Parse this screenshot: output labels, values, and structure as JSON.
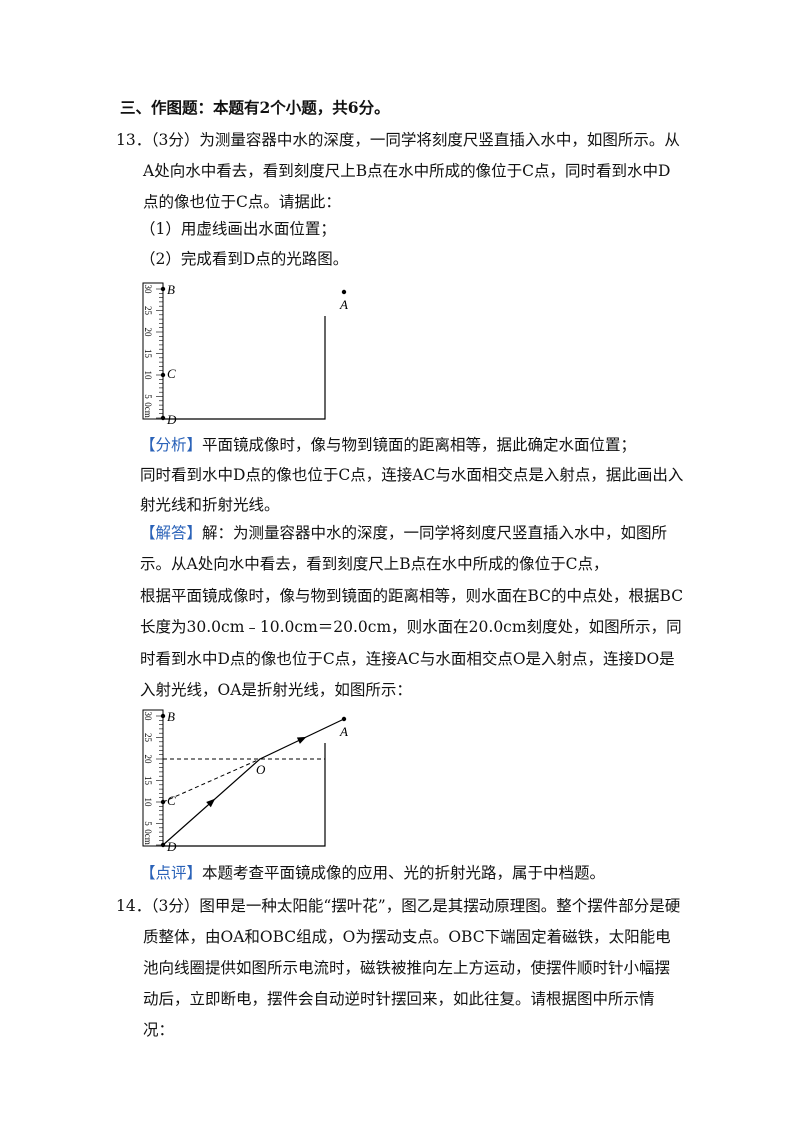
{
  "section": {
    "title": "三、作图题：本题有2个小题，共6分。"
  },
  "questions": [
    {
      "number": "13．",
      "stem": "（3分）为测量容器中水的深度，一同学将刻度尺竖直插入水中，如图所示。从A处向水中看去，看到刻度尺上B点在水中所成的像位于C点，同时看到水中D点的像也位于C点。请据此：",
      "items": [
        "（1）用虚线画出水面位置；",
        "（2）完成看到D点的光路图。"
      ],
      "figure": {
        "ruler_labels": [
          "30",
          "25",
          "20",
          "15",
          "10",
          "5",
          "0cm"
        ],
        "points": [
          "B",
          "C",
          "D",
          "A"
        ]
      },
      "analysis": {
        "tag": "【分析】",
        "paragraphs": [
          "平面镜成像时，像与物到镜面的距离相等，据此确定水面位置；",
          "同时看到水中D点的像也位于C点，连接AC与水面相交点是入射点，据此画出入射光线和折射光线。"
        ]
      },
      "answer": {
        "tag": "【解答】",
        "paragraphs": [
          "解：为测量容器中水的深度，一同学将刻度尺竖直插入水中，如图所示。从A处向水中看去，看到刻度尺上B点在水中所成的像位于C点，",
          "根据平面镜成像时，像与物到镜面的距离相等，则水面在BC的中点处，根据BC长度为30.0cm﹣10.0cm＝20.0cm，则水面在20.0cm刻度处，如图所示，同时看到水中D点的像也位于C点，连接AC与水面相交点O是入射点，连接DO是入射光线，OA是折射光线，如图所示："
        ],
        "figure": {
          "ruler_labels": [
            "30",
            "25",
            "20",
            "15",
            "10",
            "5",
            "0cm"
          ],
          "points": [
            "B",
            "C",
            "D",
            "A",
            "O"
          ]
        }
      },
      "comment": {
        "tag": "【点评】",
        "text": "本题考查平面镜成像的应用、光的折射光路，属于中档题。"
      }
    },
    {
      "number": "14．",
      "stem": "（3分）图甲是一种太阳能“摆叶花”，图乙是其摆动原理图。整个摆件部分是硬质整体，由OA和OBC组成，O为摆动支点。OBC下端固定着磁铁，太阳能电池向线圈提供如图所示电流时，磁铁被推向左上方运动，使摆件顺时针小幅摆动后，立即断电，摆件会自动逆时针摆回来，如此往复。请根据图中所示情况："
    }
  ]
}
